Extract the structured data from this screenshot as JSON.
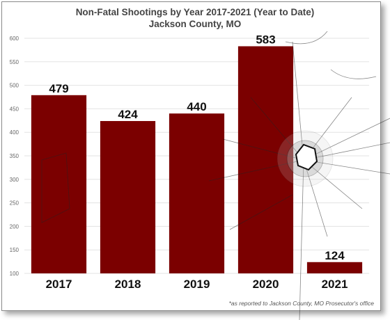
{
  "chart_data": {
    "type": "bar",
    "title": "Non-Fatal Shootings by Year 2017-2021 (Year to Date)",
    "subtitle": "Jackson County, MO",
    "categories": [
      "2017",
      "2018",
      "2019",
      "2020",
      "2021"
    ],
    "values": [
      479,
      424,
      440,
      583,
      124
    ],
    "value_labels": [
      "479",
      "424",
      "440",
      "583",
      "124"
    ],
    "ylim": [
      100,
      600
    ],
    "yticks": [
      "100",
      "150",
      "200",
      "250",
      "300",
      "350",
      "400",
      "450",
      "500",
      "550",
      "600"
    ],
    "xlabel": "",
    "ylabel": "",
    "grid": true,
    "bar_color": "#7b0000",
    "footnote": "*as reported to Jackson County, MO Prosecutor's office"
  }
}
